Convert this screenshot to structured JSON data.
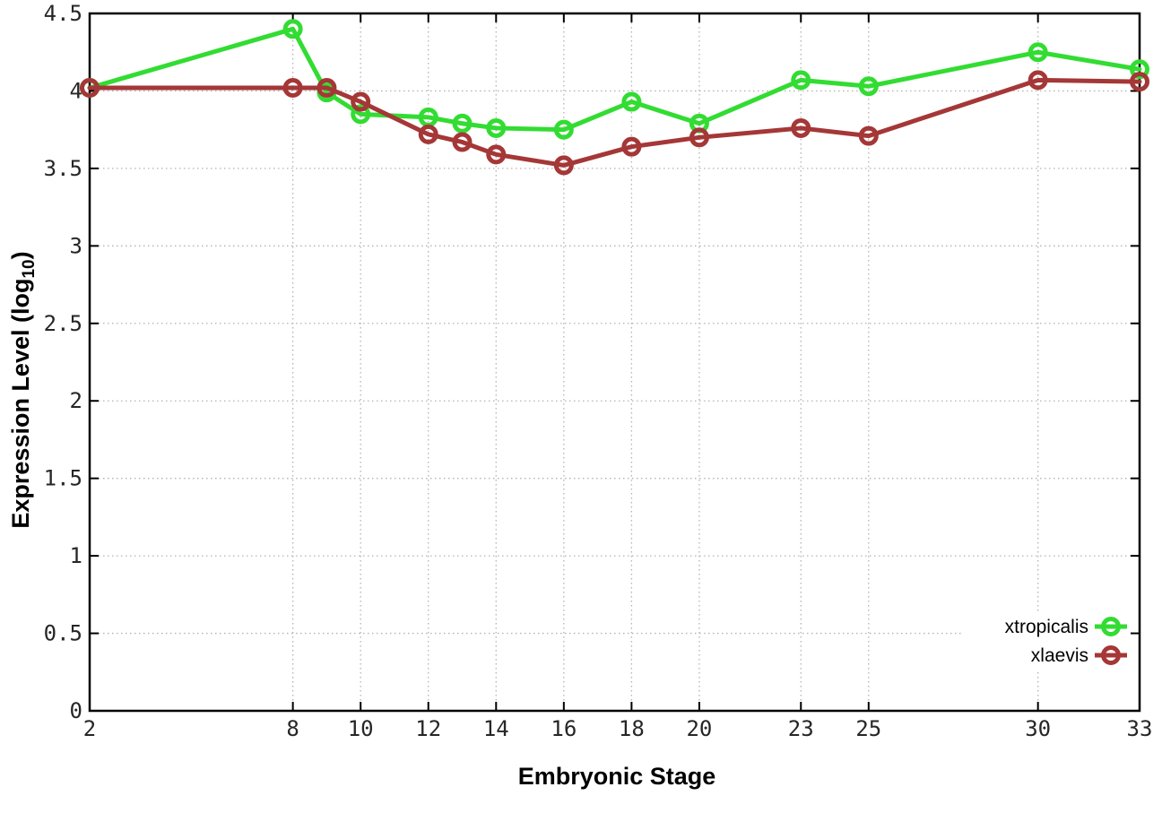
{
  "chart_data": {
    "type": "line",
    "title": "",
    "xlabel": "Embryonic Stage",
    "ylabel": "Expression Level (log10)",
    "ylabel_parts": {
      "main": "Expression Level (log",
      "sub": "10",
      "suffix": ")"
    },
    "x": [
      2,
      8,
      9,
      10,
      12,
      13,
      14,
      16,
      18,
      20,
      23,
      25,
      30,
      33
    ],
    "x_ticks": [
      2,
      8,
      10,
      12,
      14,
      16,
      18,
      20,
      23,
      25,
      30,
      33
    ],
    "x_tick_labels": [
      "2",
      "8",
      "10",
      "12",
      "14",
      "16",
      "18",
      "20",
      "23",
      "25",
      "30",
      "33"
    ],
    "y_ticks": [
      0,
      0.5,
      1,
      1.5,
      2,
      2.5,
      3,
      3.5,
      4,
      4.5
    ],
    "y_tick_labels": [
      "0",
      "0.5",
      "1",
      "1.5",
      "2",
      "2.5",
      "3",
      "3.5",
      "4",
      "4.5"
    ],
    "xlim": [
      2,
      33
    ],
    "ylim": [
      0,
      4.5
    ],
    "grid": true,
    "legend_position": "bottom-right",
    "series": [
      {
        "name": "xtropicalis",
        "color": "#32dc32",
        "values": [
          4.02,
          4.4,
          3.99,
          3.85,
          3.83,
          3.79,
          3.76,
          3.75,
          3.93,
          3.79,
          4.07,
          4.03,
          4.25,
          4.14
        ]
      },
      {
        "name": "xlaevis",
        "color": "#a53737",
        "values": [
          4.02,
          4.02,
          4.02,
          3.93,
          3.72,
          3.67,
          3.59,
          3.52,
          3.64,
          3.7,
          3.76,
          3.71,
          4.07,
          4.06
        ]
      }
    ]
  },
  "colors": {
    "background": "#ffffff",
    "border": "#000000",
    "grid": "#b3b3b3",
    "tick_label": "#262626",
    "legend_text": "#000000"
  }
}
